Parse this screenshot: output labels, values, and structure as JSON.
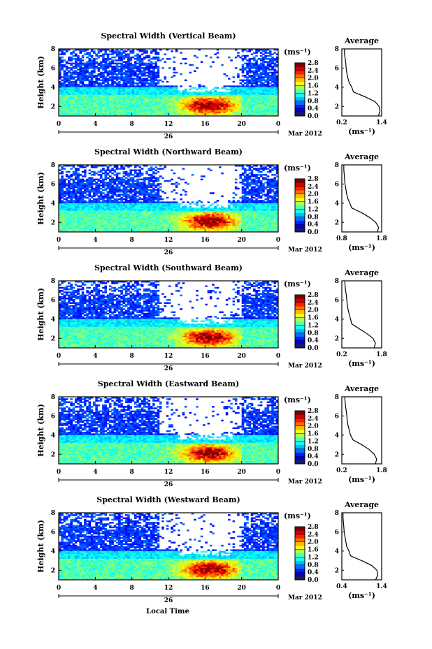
{
  "figure": {
    "x_axis_label": "Local Time",
    "date_label": "26",
    "month_label": "Mar 2012",
    "average_title": "Average",
    "colorbar_unit": "(ms⁻¹)",
    "profile_unit": "(ms⁻¹)"
  },
  "chart_data": [
    {
      "type": "heatmap",
      "title": "Spectral Width (Vertical Beam)",
      "ylabel": "Height (km)",
      "xlabel": "Local Time",
      "x_ticks": [
        "0",
        "4",
        "8",
        "12",
        "16",
        "20",
        "0"
      ],
      "y_ticks": [
        "2",
        "4",
        "6",
        "8"
      ],
      "xlim": [
        0,
        24
      ],
      "ylim": [
        1,
        8
      ],
      "colorbar_ticks": [
        "0.0",
        "0.4",
        "0.8",
        "1.2",
        "1.6",
        "2.0",
        "2.4",
        "2.8"
      ],
      "colorbar_range": [
        0,
        2.8
      ],
      "average_profile": {
        "title": "Average",
        "x_ticks": [
          "0.2",
          "1.4"
        ],
        "xlim": [
          0.2,
          1.4
        ],
        "y_ticks": [
          "2",
          "4",
          "6",
          "8"
        ],
        "ylim": [
          1,
          8
        ],
        "xlabel": "(ms⁻¹)",
        "heights": [
          1.0,
          1.5,
          2.0,
          2.5,
          3.0,
          3.5,
          4.0,
          4.5,
          5.0,
          5.5,
          6.0,
          6.5,
          7.0,
          7.5,
          8.0
        ],
        "values": [
          1.3,
          1.35,
          1.32,
          1.2,
          0.9,
          0.55,
          0.5,
          0.42,
          0.38,
          0.35,
          0.33,
          0.32,
          0.3,
          0.28,
          0.28
        ]
      }
    },
    {
      "type": "heatmap",
      "title": "Spectral Width (Northward Beam)",
      "ylabel": "Height (km)",
      "xlabel": "Local Time",
      "x_ticks": [
        "0",
        "4",
        "8",
        "12",
        "16",
        "20",
        "0"
      ],
      "y_ticks": [
        "2",
        "4",
        "6",
        "8"
      ],
      "xlim": [
        0,
        24
      ],
      "ylim": [
        1,
        8
      ],
      "colorbar_ticks": [
        "0.0",
        "0.4",
        "0.8",
        "1.2",
        "1.6",
        "2.0",
        "2.4",
        "2.8"
      ],
      "colorbar_range": [
        0,
        2.8
      ],
      "average_profile": {
        "title": "Average",
        "x_ticks": [
          "0.8",
          "1.8"
        ],
        "xlim": [
          0.8,
          1.8
        ],
        "y_ticks": [
          "2",
          "4",
          "6",
          "8"
        ],
        "ylim": [
          1,
          8
        ],
        "xlabel": "(ms⁻¹)",
        "heights": [
          1.0,
          1.5,
          2.0,
          2.5,
          3.0,
          3.5,
          4.0,
          4.5,
          5.0,
          5.5,
          6.0,
          6.5,
          7.0,
          7.5,
          8.0
        ],
        "values": [
          1.7,
          1.72,
          1.65,
          1.5,
          1.3,
          1.05,
          1.0,
          0.95,
          0.92,
          0.9,
          0.88,
          0.87,
          0.86,
          0.85,
          0.85
        ]
      }
    },
    {
      "type": "heatmap",
      "title": "Spectral Width (Southward Beam)",
      "ylabel": "Height (km)",
      "xlabel": "Local Time",
      "x_ticks": [
        "0",
        "4",
        "8",
        "12",
        "16",
        "20",
        "0"
      ],
      "y_ticks": [
        "2",
        "4",
        "6",
        "8"
      ],
      "xlim": [
        0,
        24
      ],
      "ylim": [
        1,
        8
      ],
      "colorbar_ticks": [
        "0.0",
        "0.4",
        "0.8",
        "1.2",
        "1.6",
        "2.0",
        "2.4",
        "2.8"
      ],
      "colorbar_range": [
        0,
        2.8
      ],
      "average_profile": {
        "title": "Average",
        "x_ticks": [
          "0.2",
          "1.8"
        ],
        "xlim": [
          0.2,
          1.8
        ],
        "y_ticks": [
          "2",
          "4",
          "6",
          "8"
        ],
        "ylim": [
          1,
          8
        ],
        "xlabel": "(ms⁻¹)",
        "heights": [
          1.0,
          1.5,
          2.0,
          2.5,
          3.0,
          3.5,
          4.0,
          4.5,
          5.0,
          5.5,
          6.0,
          6.5,
          7.0,
          7.5,
          8.0
        ],
        "values": [
          1.5,
          1.55,
          1.45,
          1.2,
          0.9,
          0.6,
          0.55,
          0.5,
          0.45,
          0.42,
          0.4,
          0.38,
          0.35,
          0.33,
          0.32
        ]
      }
    },
    {
      "type": "heatmap",
      "title": "Spectral Width (Eastward Beam)",
      "ylabel": "Height (km)",
      "xlabel": "Local Time",
      "x_ticks": [
        "0",
        "4",
        "8",
        "12",
        "16",
        "20",
        "0"
      ],
      "y_ticks": [
        "2",
        "4",
        "6",
        "8"
      ],
      "xlim": [
        0,
        24
      ],
      "ylim": [
        1,
        8
      ],
      "colorbar_ticks": [
        "0.0",
        "0.4",
        "0.8",
        "1.2",
        "1.6",
        "2.0",
        "2.4",
        "2.8"
      ],
      "colorbar_range": [
        0,
        2.8
      ],
      "average_profile": {
        "title": "Average",
        "x_ticks": [
          "0.2",
          "1.8"
        ],
        "xlim": [
          0.2,
          1.8
        ],
        "y_ticks": [
          "2",
          "4",
          "6",
          "8"
        ],
        "ylim": [
          1,
          8
        ],
        "xlabel": "(ms⁻¹)",
        "heights": [
          1.0,
          1.5,
          2.0,
          2.5,
          3.0,
          3.5,
          4.0,
          4.5,
          5.0,
          5.5,
          6.0,
          6.5,
          7.0,
          7.5,
          8.0
        ],
        "values": [
          1.55,
          1.6,
          1.5,
          1.3,
          1.0,
          0.65,
          0.55,
          0.5,
          0.45,
          0.42,
          0.4,
          0.38,
          0.35,
          0.33,
          0.32
        ]
      }
    },
    {
      "type": "heatmap",
      "title": "Spectral Width (Westward Beam)",
      "ylabel": "Height (km)",
      "xlabel": "Local Time",
      "x_ticks": [
        "0",
        "4",
        "8",
        "12",
        "16",
        "20",
        "0"
      ],
      "y_ticks": [
        "2",
        "4",
        "6",
        "8"
      ],
      "xlim": [
        0,
        24
      ],
      "ylim": [
        1,
        8
      ],
      "colorbar_ticks": [
        "0.0",
        "0.4",
        "0.8",
        "1.2",
        "1.6",
        "2.0",
        "2.4",
        "2.8"
      ],
      "colorbar_range": [
        0,
        2.8
      ],
      "average_profile": {
        "title": "Average",
        "x_ticks": [
          "0.4",
          "1.4"
        ],
        "xlim": [
          0.4,
          1.4
        ],
        "y_ticks": [
          "2",
          "4",
          "6",
          "8"
        ],
        "ylim": [
          1,
          8
        ],
        "xlabel": "(ms⁻¹)",
        "heights": [
          1.0,
          1.5,
          2.0,
          2.5,
          3.0,
          3.5,
          4.0,
          4.5,
          5.0,
          5.5,
          6.0,
          6.5,
          7.0,
          7.5,
          8.0
        ],
        "values": [
          1.25,
          1.3,
          1.28,
          1.15,
          0.9,
          0.62,
          0.58,
          0.52,
          0.5,
          0.48,
          0.46,
          0.45,
          0.44,
          0.43,
          0.43
        ]
      }
    }
  ]
}
